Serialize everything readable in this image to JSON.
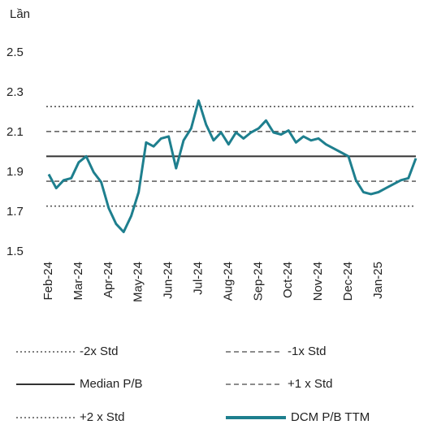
{
  "chart_data": {
    "type": "line",
    "y_label": "Lần",
    "categories": [
      "Feb-24",
      null,
      null,
      null,
      "Mar-24",
      null,
      null,
      null,
      "Apr-24",
      null,
      null,
      null,
      "May-24",
      null,
      null,
      null,
      "Jun-24",
      null,
      null,
      null,
      "Jul-24",
      null,
      null,
      null,
      "Aug-24",
      null,
      null,
      null,
      "Sep-24",
      null,
      null,
      null,
      "Oct-24",
      null,
      null,
      null,
      "Nov-24",
      null,
      null,
      null,
      "Dec-24",
      null,
      null,
      null,
      "Jan-25",
      null,
      null,
      null,
      null,
      null
    ],
    "series": [
      {
        "name": "DCM P/B TTM",
        "color": "#1e7f8e",
        "values": [
          1.89,
          1.82,
          1.86,
          1.87,
          1.95,
          1.98,
          1.9,
          1.85,
          1.72,
          1.64,
          1.6,
          1.68,
          1.8,
          2.05,
          2.03,
          2.07,
          2.08,
          1.92,
          2.06,
          2.12,
          2.26,
          2.14,
          2.06,
          2.1,
          2.04,
          2.1,
          2.07,
          2.1,
          2.12,
          2.16,
          2.1,
          2.09,
          2.11,
          2.05,
          2.08,
          2.06,
          2.07,
          2.04,
          2.02,
          2.0,
          1.98,
          1.86,
          1.8,
          1.79,
          1.8,
          1.82,
          1.84,
          1.86,
          1.87,
          1.97
        ]
      }
    ],
    "reference_lines": [
      {
        "name": "-2x Std",
        "value": 1.73,
        "color": "#555555",
        "style": "dotted"
      },
      {
        "name": "-1x Std",
        "value": 1.855,
        "color": "#666666",
        "style": "dashed"
      },
      {
        "name": "Median P/B",
        "value": 1.98,
        "color": "#333333",
        "style": "solid"
      },
      {
        "name": "+1 x Std",
        "value": 2.105,
        "color": "#666666",
        "style": "dashed"
      },
      {
        "name": "+2 x Std",
        "value": 2.23,
        "color": "#555555",
        "style": "dotted"
      }
    ],
    "ylim": [
      1.5,
      2.5
    ],
    "yticks": [
      1.5,
      1.7,
      1.9,
      2.1,
      2.3,
      2.5
    ],
    "grid": false
  }
}
